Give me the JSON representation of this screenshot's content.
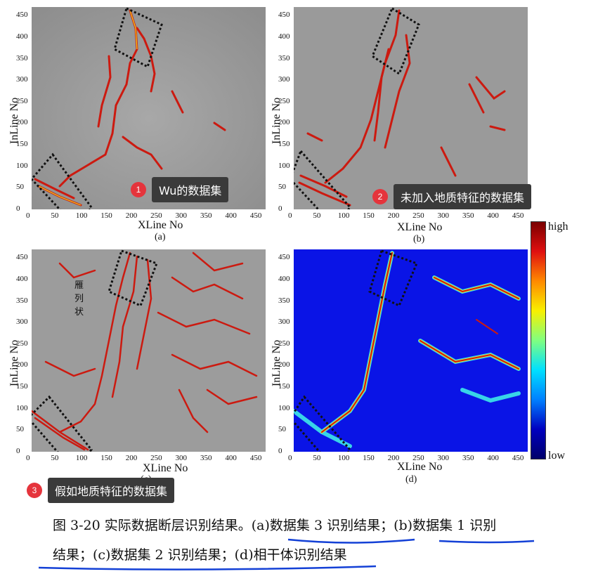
{
  "axes": {
    "xlabel": "XLine No",
    "ylabel": "InLine No",
    "x_ticks": [
      "0",
      "50",
      "100",
      "150",
      "200",
      "250",
      "300",
      "350",
      "400",
      "450"
    ],
    "y_ticks": [
      "0",
      "50",
      "100",
      "150",
      "200",
      "250",
      "300",
      "350",
      "400",
      "450"
    ]
  },
  "panels": [
    {
      "id": "a",
      "sublabel": "(a)",
      "background": "gray"
    },
    {
      "id": "b",
      "sublabel": "(b)",
      "background": "gray"
    },
    {
      "id": "c",
      "sublabel": "(c)",
      "background": "gray",
      "annotation": "雁列状"
    },
    {
      "id": "d",
      "sublabel": "(d)",
      "background": "blue"
    }
  ],
  "colorbar": {
    "high": "high",
    "low": "low"
  },
  "badges": [
    {
      "num": "1",
      "text": "Wu的数据集"
    },
    {
      "num": "2",
      "text": "未加入地质特征的数据集"
    },
    {
      "num": "3",
      "text": "假如地质特征的数据集"
    }
  ],
  "caption": {
    "line1": "图 3-20 实际数据断层识别结果。(a)数据集 3 识别结果；(b)数据集 1 识别",
    "line2": "结果；(c)数据集 2 识别结果；(d)相干体识别结果"
  },
  "colors": {
    "fault_red": "#cc1a10",
    "fault_yellow": "#f2d81c",
    "gray_bg": "#9c9c9c",
    "blue_bg": "#0a14e6",
    "underline": "#1340d6",
    "badge_red": "#e5343c"
  }
}
